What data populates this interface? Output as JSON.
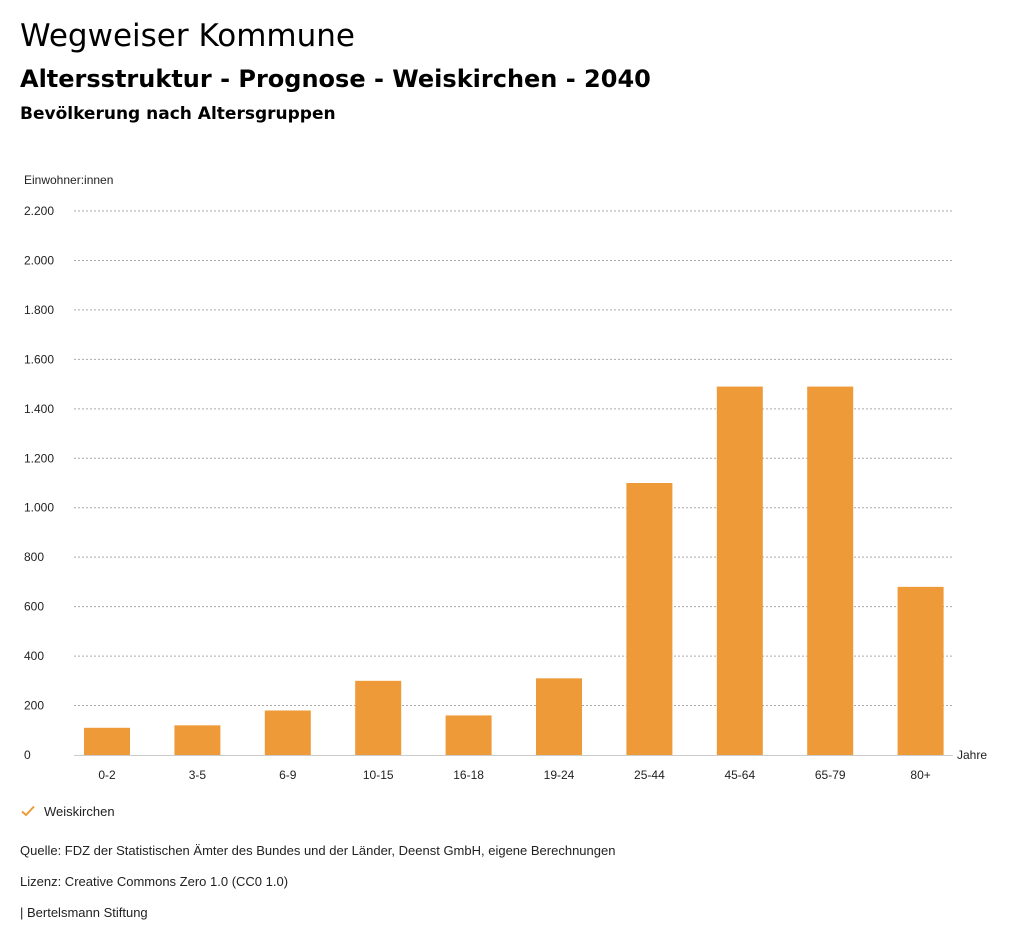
{
  "header": {
    "title": "Wegweiser Kommune",
    "subtitle": "Altersstruktur - Prognose - Weiskirchen - 2040",
    "section": "Bevölkerung nach Altersgruppen"
  },
  "chart_data": {
    "type": "bar",
    "ylabel": "Einwohner:innen",
    "xlabel": "Jahre",
    "ylim": [
      0,
      2200
    ],
    "yticks": [
      0,
      200,
      400,
      600,
      800,
      1000,
      1200,
      1400,
      1600,
      1800,
      2000,
      2200
    ],
    "ytick_labels": [
      "0",
      "200",
      "400",
      "600",
      "800",
      "1.000",
      "1.200",
      "1.400",
      "1.600",
      "1.800",
      "2.000",
      "2.200"
    ],
    "grid": true,
    "categories": [
      "0-2",
      "3-5",
      "6-9",
      "10-15",
      "16-18",
      "19-24",
      "25-44",
      "45-64",
      "65-79",
      "80+"
    ],
    "series": [
      {
        "name": "Weiskirchen",
        "color": "#ee9a38",
        "values": [
          110,
          120,
          180,
          300,
          160,
          310,
          1100,
          1490,
          1490,
          680
        ]
      }
    ],
    "legend_position": "bottom-left"
  },
  "legend": {
    "label": "Weiskirchen",
    "icon": "check-icon",
    "color": "#ee9a38"
  },
  "footer": {
    "source": "Quelle: FDZ der Statistischen Ämter des Bundes und der Länder, Deenst GmbH, eigene Berechnungen",
    "license": "Lizenz: Creative Commons Zero 1.0 (CC0 1.0)",
    "publisher": "| Bertelsmann Stiftung"
  }
}
